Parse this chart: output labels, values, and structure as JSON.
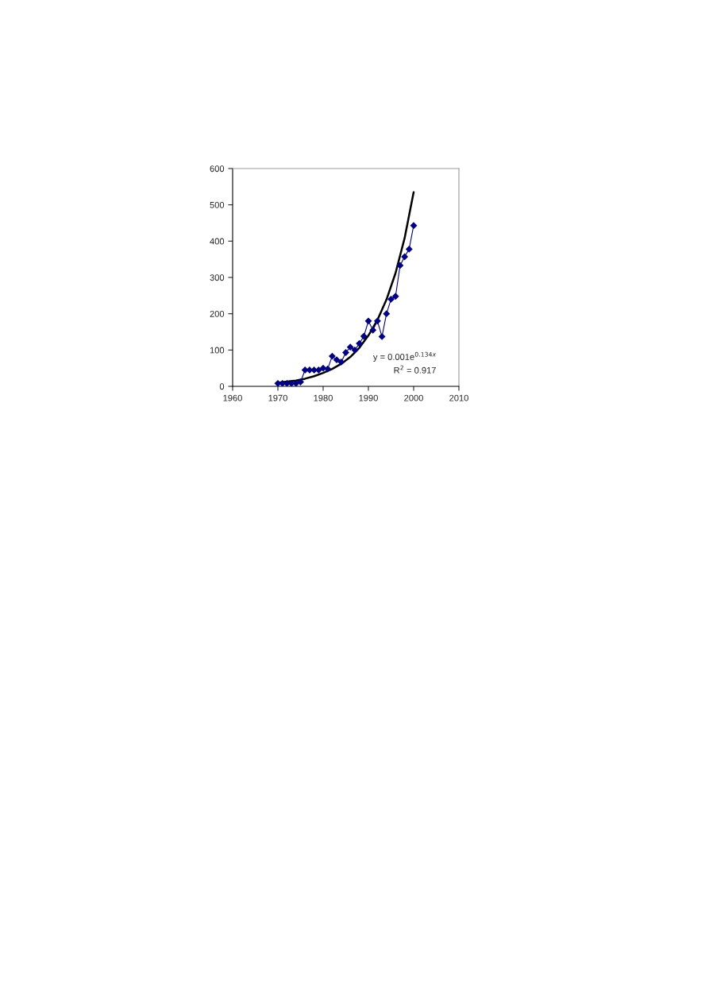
{
  "chart_data": {
    "type": "line",
    "xlim": [
      1960,
      2010
    ],
    "xticks": [
      1960,
      1970,
      1980,
      1990,
      2000,
      2010
    ],
    "ylim": [
      0,
      600
    ],
    "yticks": [
      0,
      100,
      200,
      300,
      400,
      500,
      600
    ],
    "grid": false,
    "legend": false,
    "series": [
      {
        "color": "#000080",
        "marker": "diamond",
        "x": [
          1970,
          1971,
          1972,
          1973,
          1974,
          1975,
          1976,
          1977,
          1978,
          1979,
          1980,
          1981,
          1982,
          1983,
          1984,
          1985,
          1986,
          1987,
          1988,
          1989,
          1990,
          1991,
          1992,
          1993,
          1994,
          1995,
          1996,
          1997,
          1998,
          1999,
          2000
        ],
        "values": [
          8,
          8,
          8,
          8,
          8,
          12,
          45,
          45,
          45,
          45,
          50,
          48,
          83,
          73,
          67,
          93,
          108,
          100,
          118,
          138,
          180,
          155,
          180,
          137,
          200,
          240,
          248,
          333,
          357,
          378,
          443
        ]
      },
      {
        "color": "#000000",
        "marker": "none",
        "x": [
          1970,
          1972,
          1974,
          1976,
          1978,
          1980,
          1982,
          1984,
          1986,
          1988,
          1990,
          1992,
          1994,
          1996,
          1998,
          2000
        ],
        "values": [
          10,
          13,
          16,
          21,
          28,
          37,
          48,
          62,
          81,
          106,
          140,
          183,
          239,
          312,
          408,
          535
        ]
      }
    ],
    "annotations": [
      "y = 0.001e$^{0.134x}$",
      "R$^{2}$ = 0.917"
    ]
  }
}
